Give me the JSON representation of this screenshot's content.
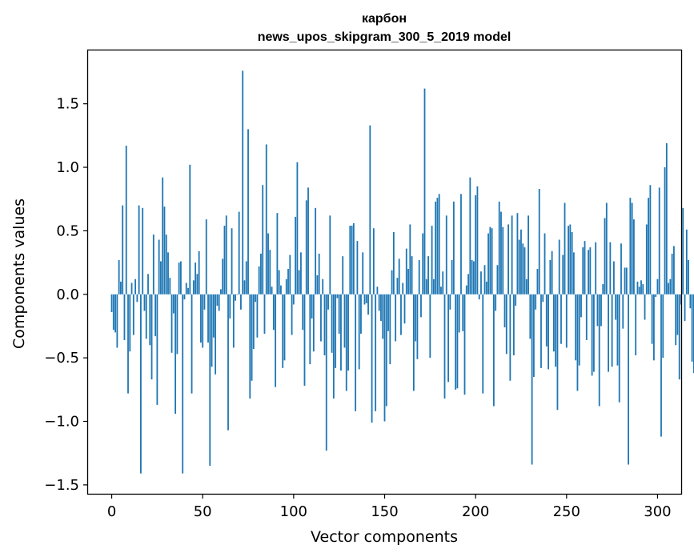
{
  "chart_data": {
    "type": "bar",
    "title": "карбон",
    "subtitle": "news_upos_skipgram_300_5_2019 model",
    "xlabel": "Vector components",
    "ylabel": "Components values",
    "xlim": [
      -13,
      313
    ],
    "ylim": [
      -1.57,
      1.92
    ],
    "xticks": [
      0,
      50,
      100,
      150,
      200,
      250,
      300
    ],
    "yticks": [
      -1.5,
      -1.0,
      -0.5,
      0.0,
      0.5,
      1.0,
      1.5
    ],
    "xtick_labels": [
      "0",
      "50",
      "100",
      "150",
      "200",
      "250",
      "300"
    ],
    "ytick_labels": [
      "−1.5",
      "−1.0",
      "−0.5",
      "0.0",
      "0.5",
      "1.0",
      "1.5"
    ],
    "color": "#1f77b4",
    "values": [
      -0.14,
      -0.28,
      -0.3,
      -0.42,
      0.27,
      0.1,
      0.7,
      -0.36,
      1.17,
      -0.78,
      -0.45,
      0.09,
      -0.32,
      0.12,
      -0.06,
      0.7,
      -1.41,
      0.68,
      -0.13,
      -0.35,
      0.16,
      -0.4,
      -0.67,
      0.47,
      -0.33,
      -0.87,
      0.43,
      0.26,
      0.92,
      0.69,
      0.47,
      0.33,
      0.13,
      -0.46,
      -0.15,
      -0.94,
      -0.47,
      0.25,
      0.26,
      -1.41,
      -0.04,
      0.09,
      0.05,
      1.02,
      -0.78,
      0.11,
      0.25,
      0.16,
      0.34,
      -0.38,
      -0.42,
      -0.12,
      0.59,
      -0.38,
      -1.35,
      -0.57,
      -0.34,
      -0.63,
      -0.09,
      -0.13,
      0.04,
      0.28,
      0.54,
      0.62,
      -1.07,
      -0.19,
      0.52,
      -0.42,
      -0.05,
      0.0,
      0.65,
      -0.12,
      1.76,
      0.11,
      0.26,
      1.3,
      -0.82,
      -0.68,
      -0.43,
      -0.06,
      -0.34,
      0.22,
      0.32,
      0.86,
      -0.31,
      1.18,
      0.48,
      0.35,
      0.06,
      -0.28,
      -0.73,
      0.64,
      0.19,
      0.07,
      -0.58,
      -0.52,
      0.12,
      0.2,
      0.31,
      -0.32,
      -0.08,
      0.61,
      1.04,
      0.19,
      0.33,
      -0.28,
      -0.72,
      0.74,
      0.84,
      -0.55,
      -0.19,
      -0.45,
      0.68,
      0.15,
      0.32,
      -0.37,
      0.12,
      -0.48,
      -1.23,
      -0.12,
      0.62,
      -0.46,
      -0.82,
      -0.58,
      -0.03,
      -0.31,
      -0.6,
      0.3,
      -0.42,
      -0.76,
      -0.6,
      0.54,
      0.54,
      0.56,
      -0.92,
      0.42,
      -0.59,
      -0.31,
      0.33,
      -0.08,
      -0.07,
      -0.16,
      1.33,
      -1.01,
      0.52,
      -0.92,
      0.06,
      -0.13,
      -0.21,
      -0.35,
      -1.0,
      -0.88,
      -0.29,
      -0.55,
      0.19,
      0.49,
      -0.37,
      0.13,
      0.28,
      -0.32,
      0.09,
      -0.23,
      0.36,
      0.2,
      0.55,
      0.3,
      -0.76,
      -0.37,
      -0.51,
      0.27,
      -0.18,
      0.48,
      1.62,
      0.12,
      0.3,
      -0.5,
      0.54,
      0.12,
      0.73,
      0.76,
      0.79,
      0.06,
      0.18,
      -0.82,
      0.62,
      -0.69,
      -0.12,
      0.27,
      0.73,
      -0.75,
      -0.74,
      -0.3,
      0.79,
      -0.29,
      -0.79,
      0.07,
      0.16,
      0.92,
      0.27,
      0.26,
      0.78,
      0.85,
      -0.04,
      0.18,
      -0.78,
      0.23,
      0.1,
      0.48,
      0.53,
      0.52,
      -0.88,
      -0.13,
      0.23,
      0.73,
      0.65,
      0.53,
      -0.26,
      -0.47,
      0.55,
      -0.68,
      0.62,
      -0.48,
      -0.09,
      0.64,
      0.43,
      0.51,
      0.4,
      0.37,
      0.12,
      0.62,
      -0.35,
      -1.34,
      -0.65,
      -0.12,
      0.2,
      0.83,
      -0.58,
      -0.06,
      0.48,
      -0.41,
      -0.59,
      0.27,
      0.34,
      -0.45,
      -0.57,
      -0.91,
      0.43,
      -0.39,
      0.31,
      0.72,
      -0.42,
      0.54,
      0.55,
      0.49,
      0.33,
      -0.52,
      -0.76,
      -0.56,
      -0.18,
      0.37,
      0.42,
      -0.36,
      0.35,
      0.37,
      -0.64,
      -0.61,
      0.41,
      -0.25,
      -0.88,
      -0.25,
      0.08,
      0.6,
      0.72,
      -0.61,
      0.41,
      -0.57,
      0.26,
      -0.2,
      -0.56,
      -0.85,
      0.4,
      -0.27,
      0.21,
      0.21,
      -1.34,
      0.76,
      0.72,
      0.59,
      -0.48,
      0.1,
      0.06,
      0.11,
      0.08,
      -0.2,
      0.55,
      0.76,
      0.86,
      -0.39,
      -0.52,
      -0.02,
      0.12,
      0.84,
      -1.12,
      -0.5,
      1.0,
      1.19,
      0.09,
      0.12,
      0.32,
      0.38,
      -0.4,
      -0.32,
      -0.67,
      -0.08,
      0.68,
      -0.21,
      0.51,
      0.27,
      -0.11,
      -0.53,
      -0.62,
      -0.53
    ]
  }
}
